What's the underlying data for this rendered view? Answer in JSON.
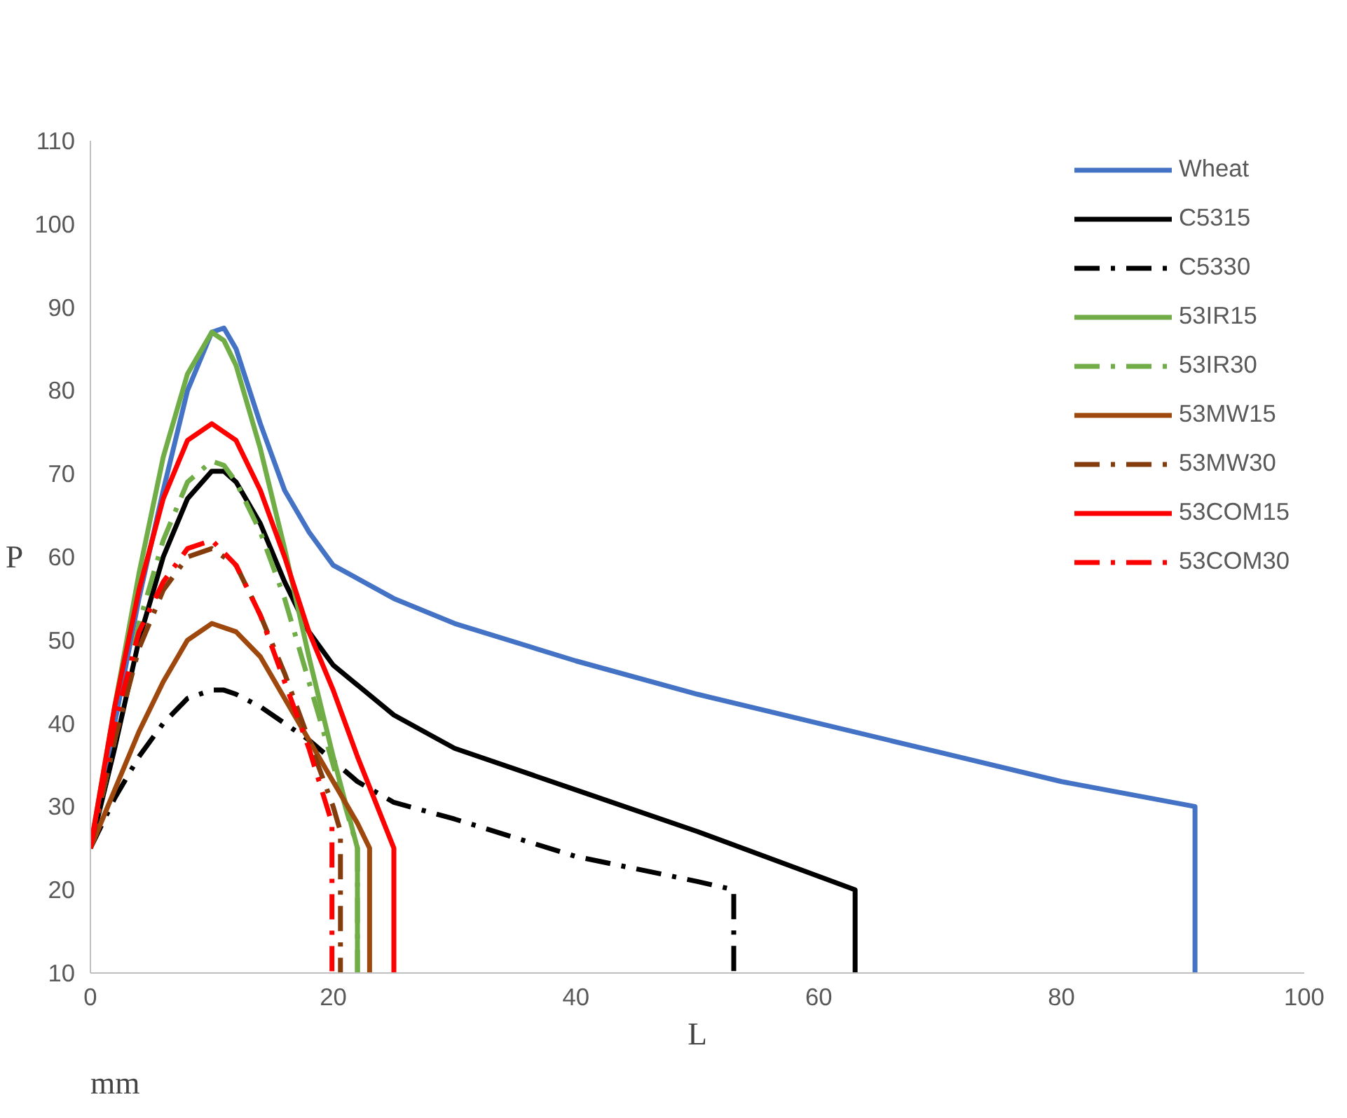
{
  "chart_data": {
    "type": "line",
    "xlabel": "L",
    "ylabel": "P",
    "annotations": [
      "mm"
    ],
    "xlim": [
      0,
      100
    ],
    "ylim": [
      10,
      110
    ],
    "xticks": [
      0,
      20,
      40,
      60,
      80,
      100
    ],
    "yticks": [
      10,
      20,
      30,
      40,
      50,
      60,
      70,
      80,
      90,
      100,
      110
    ],
    "grid": false,
    "legend": "top right",
    "marker": "none",
    "series": [
      {
        "name": "Wheat",
        "color": "#4472c4",
        "line_style": "solid",
        "x": [
          0,
          2,
          4,
          6,
          8,
          10,
          11,
          12,
          14,
          16,
          18,
          20,
          25,
          30,
          40,
          50,
          60,
          70,
          80,
          91,
          91
        ],
        "values": [
          25,
          40,
          55,
          68,
          80,
          87,
          87.5,
          85,
          76,
          68,
          63,
          59,
          55,
          52,
          47.5,
          43.5,
          40,
          36.5,
          33,
          30,
          10
        ]
      },
      {
        "name": "C5315",
        "color": "#000000",
        "line_style": "solid",
        "x": [
          0,
          2,
          4,
          6,
          8,
          10,
          11,
          12,
          14,
          16,
          18,
          20,
          25,
          30,
          40,
          50,
          63,
          63
        ],
        "values": [
          25,
          37,
          50,
          60,
          67,
          70.3,
          70.3,
          69,
          64,
          57,
          51,
          47,
          41,
          37,
          32,
          27,
          20,
          10
        ]
      },
      {
        "name": "C5330",
        "color": "#000000",
        "line_style": "dashdot",
        "x": [
          0,
          2,
          4,
          6,
          8,
          10,
          11,
          12,
          14,
          16,
          18,
          20,
          22,
          25,
          30,
          40,
          50,
          53,
          53
        ],
        "values": [
          25,
          31,
          36,
          40,
          43,
          44,
          44,
          43.5,
          42,
          40,
          38,
          35.5,
          33,
          30.5,
          28.5,
          24,
          21,
          20,
          10
        ]
      },
      {
        "name": "53IR15",
        "color": "#70ad47",
        "line_style": "solid",
        "x": [
          0,
          2,
          4,
          6,
          8,
          10,
          11,
          12,
          14,
          16,
          18,
          20,
          22,
          22
        ],
        "values": [
          25,
          42,
          58,
          72,
          82,
          87,
          86,
          83,
          73,
          61,
          48,
          36,
          25,
          10
        ]
      },
      {
        "name": "53IR30",
        "color": "#70ad47",
        "line_style": "dashdot",
        "x": [
          0,
          2,
          4,
          6,
          8,
          10,
          11,
          12,
          14,
          16,
          18,
          20,
          22,
          22
        ],
        "values": [
          25,
          38,
          52,
          62,
          69,
          71.5,
          71,
          69,
          63,
          55,
          45,
          35,
          25,
          10
        ]
      },
      {
        "name": "53MW15",
        "color": "#9e480e",
        "line_style": "solid",
        "x": [
          0,
          2,
          4,
          6,
          8,
          10,
          12,
          14,
          16,
          18,
          20,
          22,
          23,
          23
        ],
        "values": [
          25,
          32,
          39,
          45,
          50,
          52,
          51,
          48,
          43,
          38,
          33,
          28,
          25,
          10
        ]
      },
      {
        "name": "53MW30",
        "color": "#843c0c",
        "line_style": "dashdot",
        "x": [
          0,
          2,
          4,
          6,
          8,
          10,
          12,
          14,
          16,
          18,
          20,
          20.6,
          20.6
        ],
        "values": [
          25,
          38,
          49,
          56,
          60,
          61,
          59,
          53,
          46,
          38,
          30,
          27,
          10
        ]
      },
      {
        "name": "53COM15",
        "color": "#ff0000",
        "line_style": "solid",
        "x": [
          0,
          2,
          4,
          6,
          8,
          10,
          12,
          14,
          16,
          18,
          20,
          22,
          25,
          25
        ],
        "values": [
          25,
          42,
          56,
          67,
          74,
          76,
          74,
          68,
          60,
          51,
          44,
          36,
          25,
          10
        ]
      },
      {
        "name": "53COM30",
        "color": "#ff0000",
        "line_style": "dashdot",
        "x": [
          0,
          2,
          4,
          6,
          8,
          10,
          12,
          14,
          16,
          18,
          19.9,
          19.9
        ],
        "values": [
          25,
          40,
          51,
          57,
          61,
          62,
          59,
          53,
          45,
          37,
          28,
          10
        ]
      }
    ]
  }
}
